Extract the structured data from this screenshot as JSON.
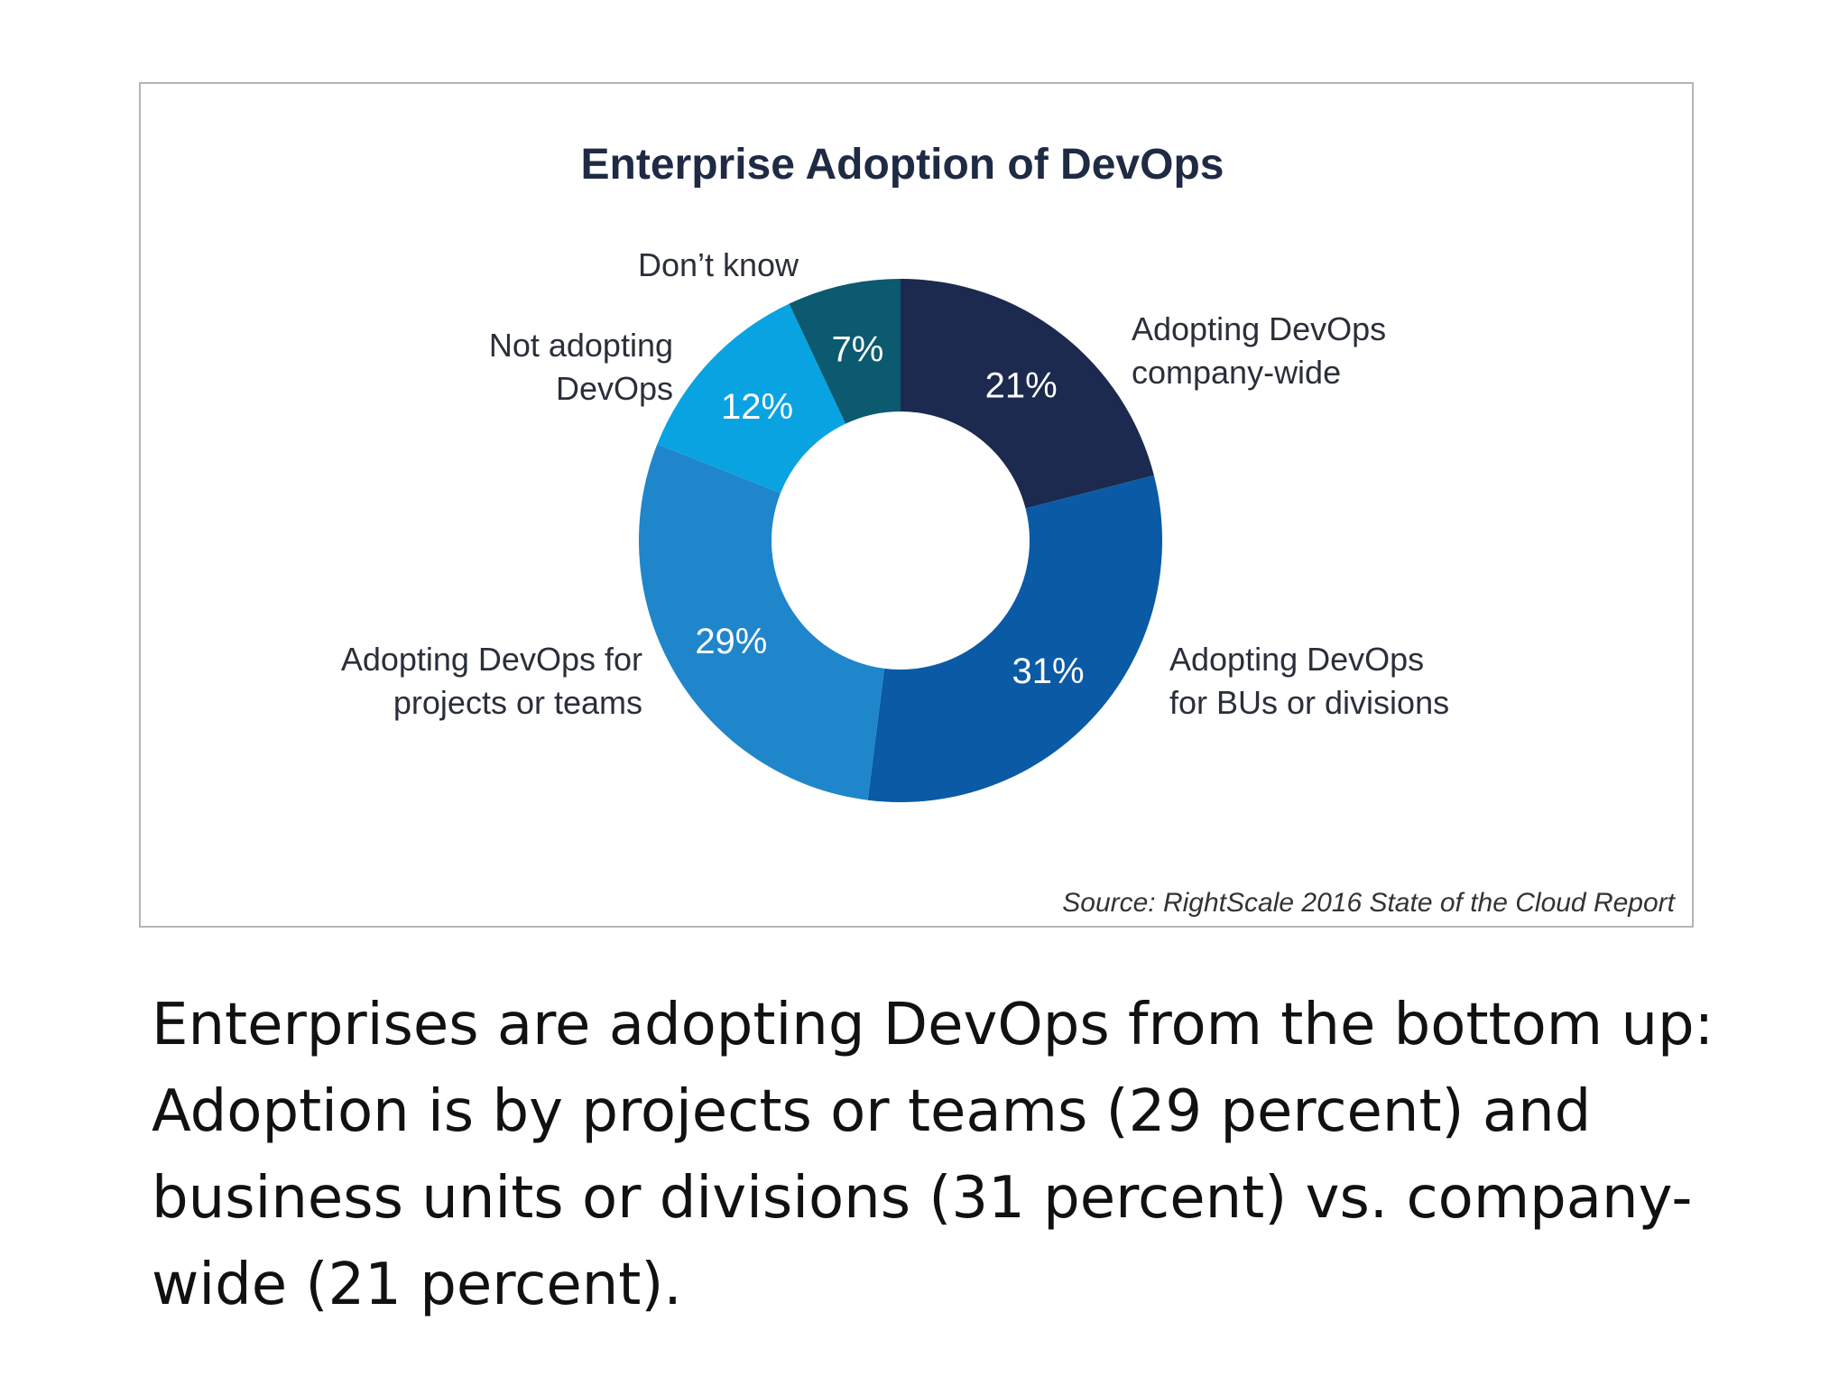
{
  "chart_data": {
    "type": "pie",
    "title": "Enterprise Adoption of DevOps",
    "categories": [
      "Adopting DevOps company-wide",
      "Adopting DevOps for BUs or divisions",
      "Adopting DevOps for projects or teams",
      "Not adopting DevOps",
      "Don’t know"
    ],
    "values": [
      21,
      31,
      29,
      12,
      7
    ],
    "value_labels": [
      "21%",
      "31%",
      "29%",
      "12%",
      "7%"
    ],
    "label_lines": [
      [
        "Adopting DevOps",
        "company-wide"
      ],
      [
        "Adopting DevOps",
        "for BUs or divisions"
      ],
      [
        "Adopting DevOps for",
        "projects or teams"
      ],
      [
        "Not adopting",
        "DevOps"
      ],
      [
        "Don’t know"
      ]
    ],
    "colors": [
      "#1b2a4e",
      "#0a5aa6",
      "#1f86cb",
      "#0aa3e2",
      "#0b5a6f"
    ],
    "donut": true,
    "source": "Source: RightScale 2016 State of the Cloud Report"
  },
  "caption": "Enterprises are adopting DevOps from the bottom up: Adoption is by projects or teams (29 percent) and business units or divisions (31 percent) vs. company-wide (21 percent)."
}
